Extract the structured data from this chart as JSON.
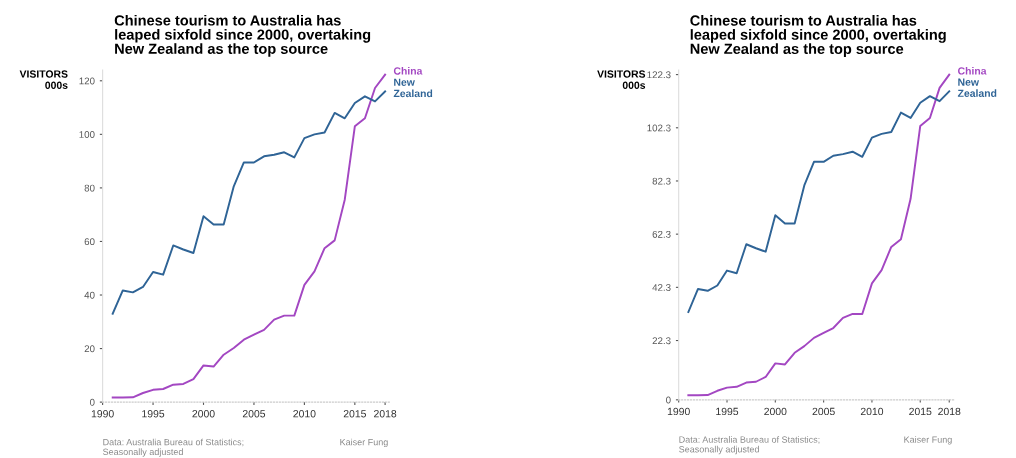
{
  "chart_data": [
    {
      "type": "line",
      "title": "Chinese tourism to Australia has\nleaped sixfold since 2000, overtaking\nNew Zealand as the top source",
      "ylabel": "VISITORS\n000s",
      "x": [
        1991,
        1992,
        1993,
        1994,
        1995,
        1996,
        1997,
        1998,
        1999,
        2000,
        2001,
        2002,
        2003,
        2004,
        2005,
        2006,
        2007,
        2008,
        2009,
        2010,
        2011,
        2012,
        2013,
        2014,
        2015,
        2016,
        2017,
        2018
      ],
      "series": [
        {
          "name": "China",
          "color": "#a347c2",
          "values": [
            1.7,
            1.7,
            1.8,
            3.4,
            4.6,
            4.9,
            6.5,
            6.8,
            8.6,
            13.7,
            13.3,
            17.7,
            20.2,
            23.3,
            25.2,
            27,
            30.8,
            32.3,
            32.3,
            43.8,
            48.8,
            57.5,
            60.4,
            75.6,
            103,
            106,
            117.3,
            122.3
          ]
        },
        {
          "name": "New Zealand",
          "color": "#2f6496",
          "values": [
            33,
            41.7,
            41,
            43,
            48.6,
            47.6,
            58.5,
            57,
            55.7,
            69.4,
            66.3,
            66.3,
            80.6,
            89.5,
            89.5,
            91.8,
            92.4,
            93.3,
            91.4,
            98.6,
            100,
            100.7,
            108,
            106,
            111.7,
            114.2,
            112.3,
            116
          ]
        }
      ],
      "xlim": [
        1990,
        2018.6
      ],
      "xticks": [
        1990,
        1995,
        2000,
        2005,
        2010,
        2015,
        2018
      ],
      "ylim": [
        0,
        124
      ],
      "yticks": [
        0,
        20,
        40,
        60,
        80,
        100,
        120
      ],
      "grid": false,
      "legend": false,
      "annotations": [
        "Data: Australia Bureau of Statistics;\nSeasonally adjusted",
        "Kaiser Fung"
      ]
    },
    {
      "type": "line",
      "title": "Chinese tourism to Australia has\nleaped sixfold since 2000, overtaking\nNew Zealand as the top source",
      "ylabel": "VISITORS\n000s",
      "x": [
        1991,
        1992,
        1993,
        1994,
        1995,
        1996,
        1997,
        1998,
        1999,
        2000,
        2001,
        2002,
        2003,
        2004,
        2005,
        2006,
        2007,
        2008,
        2009,
        2010,
        2011,
        2012,
        2013,
        2014,
        2015,
        2016,
        2017,
        2018
      ],
      "series": [
        {
          "name": "China",
          "color": "#a347c2",
          "values": [
            1.7,
            1.7,
            1.8,
            3.4,
            4.6,
            4.9,
            6.5,
            6.8,
            8.6,
            13.7,
            13.3,
            17.7,
            20.2,
            23.3,
            25.2,
            27,
            30.8,
            32.3,
            32.3,
            43.8,
            48.8,
            57.5,
            60.4,
            75.6,
            103,
            106,
            117.3,
            122.3
          ]
        },
        {
          "name": "New Zealand",
          "color": "#2f6496",
          "values": [
            33,
            41.7,
            41,
            43,
            48.6,
            47.6,
            58.5,
            57,
            55.7,
            69.4,
            66.3,
            66.3,
            80.6,
            89.5,
            89.5,
            91.8,
            92.4,
            93.3,
            91.4,
            98.6,
            100,
            100.7,
            108,
            106,
            111.7,
            114.2,
            112.3,
            116
          ]
        }
      ],
      "xlim": [
        1990,
        2018.6
      ],
      "xticks": [
        1990,
        1995,
        2000,
        2005,
        2010,
        2015,
        2018
      ],
      "ylim": [
        0,
        124
      ],
      "yticks": [
        0,
        22.3,
        42.3,
        62.3,
        82.3,
        102.3,
        122.3
      ],
      "grid": false,
      "legend": false,
      "annotations": [
        "Data: Australia Bureau of Statistics;\nSeasonally adjusted",
        "Kaiser Fung"
      ]
    }
  ]
}
